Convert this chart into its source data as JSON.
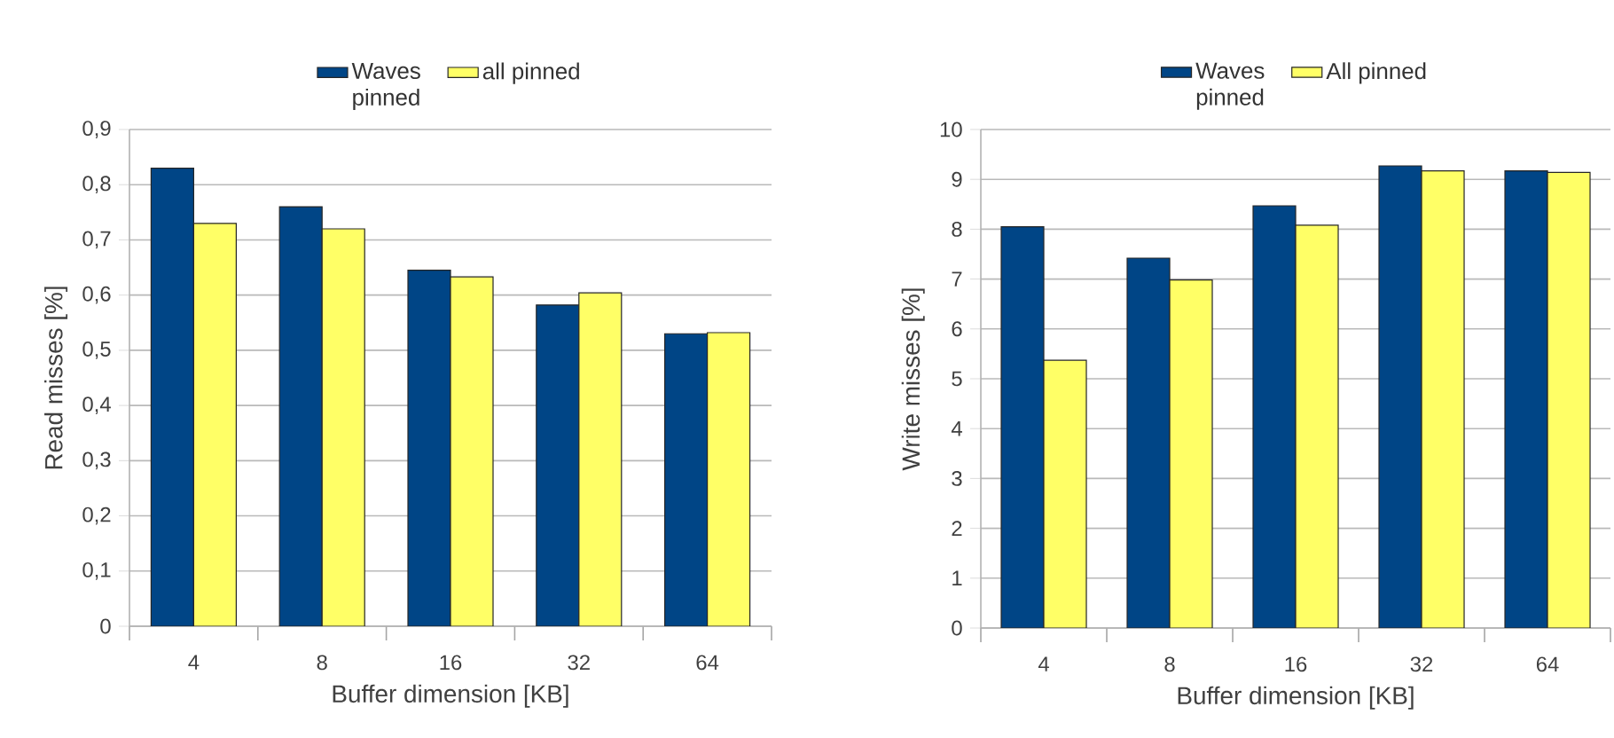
{
  "chart_data": [
    {
      "type": "bar",
      "categories": [
        "4",
        "8",
        "16",
        "32",
        "64"
      ],
      "xlabel": "Buffer dimension [KB]",
      "ylabel": "Read misses [%]",
      "series": [
        {
          "name": "Waves pinned",
          "color": "#004586",
          "values": [
            0.83,
            0.76,
            0.645,
            0.582,
            0.53
          ]
        },
        {
          "name": "all pinned",
          "color": "#ffff66",
          "values": [
            0.73,
            0.72,
            0.633,
            0.604,
            0.532
          ]
        }
      ],
      "ylim": [
        0,
        0.9
      ],
      "yticks": [
        {
          "value": 0,
          "label": "0"
        },
        {
          "value": 0.1,
          "label": "0,1"
        },
        {
          "value": 0.2,
          "label": "0,2"
        },
        {
          "value": 0.3,
          "label": "0,3"
        },
        {
          "value": 0.4,
          "label": "0,4"
        },
        {
          "value": 0.5,
          "label": "0,5"
        },
        {
          "value": 0.6,
          "label": "0,6"
        },
        {
          "value": 0.7,
          "label": "0,7"
        },
        {
          "value": 0.8,
          "label": "0,8"
        },
        {
          "value": 0.9,
          "label": "0,9"
        }
      ],
      "grid": "y",
      "legend": "top"
    },
    {
      "type": "bar",
      "categories": [
        "4",
        "8",
        "16",
        "32",
        "64"
      ],
      "xlabel": "Buffer dimension [KB]",
      "ylabel": "Write misses [%]",
      "series": [
        {
          "name": "Waves pinned",
          "color": "#004586",
          "values": [
            8.05,
            7.42,
            8.47,
            9.27,
            9.17
          ]
        },
        {
          "name": "All pinned",
          "color": "#ffff66",
          "values": [
            5.37,
            6.98,
            8.08,
            9.17,
            9.14
          ]
        }
      ],
      "ylim": [
        0,
        10
      ],
      "yticks": [
        0,
        1,
        2,
        3,
        4,
        5,
        6,
        7,
        8,
        9,
        10
      ],
      "grid": "y",
      "legend": "top"
    }
  ]
}
